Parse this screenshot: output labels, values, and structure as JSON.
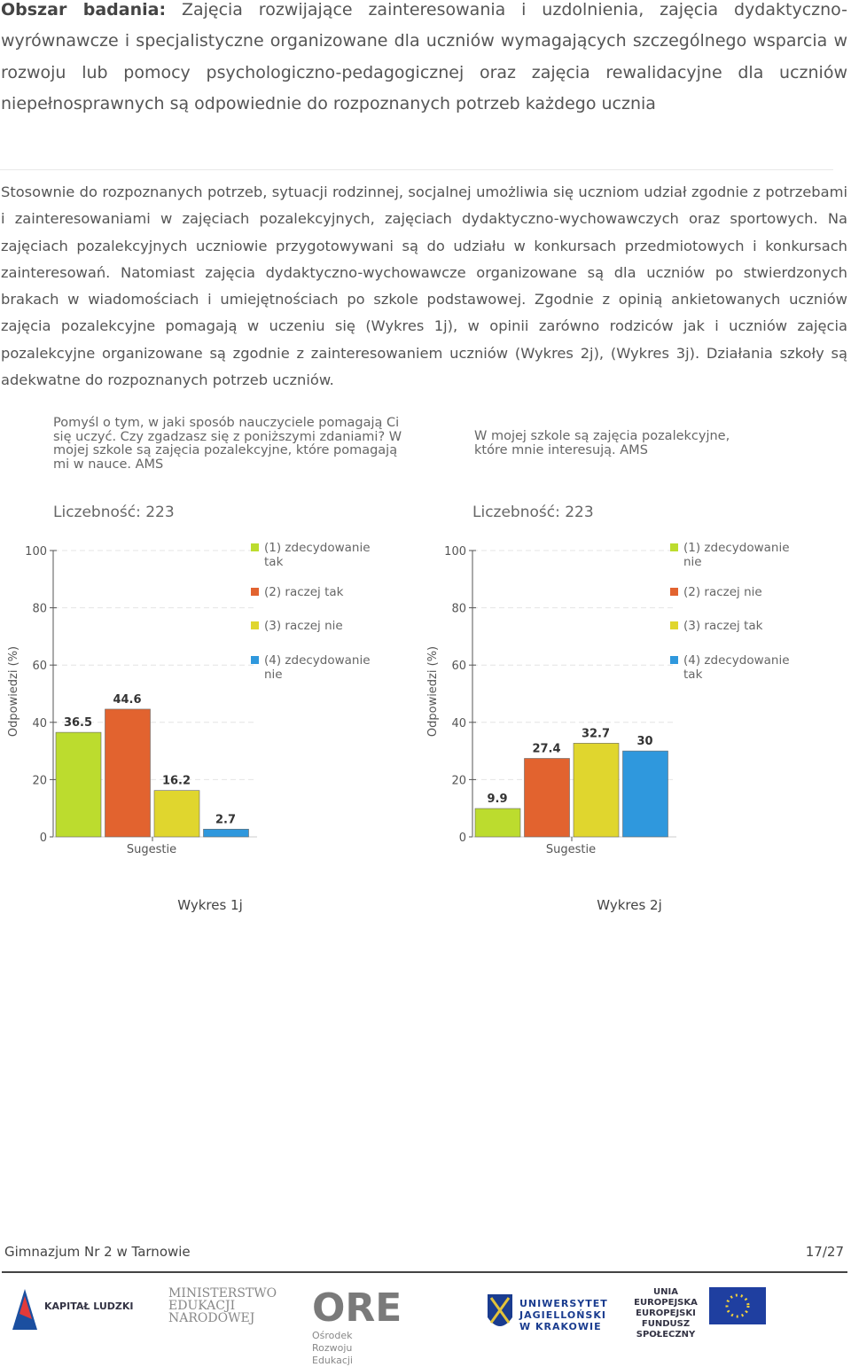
{
  "heading": {
    "label": "Obszar badania:",
    "text": "Zajęcia rozwijające zainteresowania i uzdolnienia, zajęcia dydaktyczno-wyrównawcze i specjalistyczne organizowane dla uczniów wymagających szczególnego wsparcia w rozwoju lub pomocy psychologiczno-pedagogicznej oraz zajęcia rewalidacyjne dla uczniów niepełnosprawnych są odpowiednie do rozpoznanych potrzeb każdego ucznia"
  },
  "paragraph": "Stosownie do rozpoznanych potrzeb, sytuacji rodzinnej, socjalnej umożliwia się uczniom udział zgodnie z potrzebami i zainteresowaniami w zajęciach pozalekcyjnych, zajęciach dydaktyczno-wychowawczych oraz sportowych. Na zajęciach pozalekcyjnych uczniowie przygotowywani są do udziału w konkursach przedmiotowych i konkursach zainteresowań. Natomiast zajęcia dydaktyczno-wychowawcze organizowane są dla uczniów po stwierdzonych brakach w wiadomościach i umiejętnościach po szkole podstawowej. Zgodnie z opinią ankietowanych uczniów zajęcia pozalekcyjne pomagają w uczeniu się (Wykres 1j), w opinii zarówno rodziców jak i uczniów zajęcia pozalekcyjne organizowane są zgodnie z zainteresowaniem uczniów (Wykres 2j), (Wykres 3j). Działania szkoły są adekwatne do rozpoznanych potrzeb uczniów.",
  "chart_data": [
    {
      "type": "bar",
      "title": "Pomyśl o tym, w jaki sposób nauczyciele pomagają Ci się uczyć. Czy zgadzasz się z poniższymi zdaniami? W mojej szkole są zajęcia pozalekcyjne, które pomagają mi w nauce. AMS",
      "subtitle": "Liczebność: 223",
      "x_label": "Sugestie",
      "y_label": "Odpowiedzi (%)",
      "ylim": [
        0,
        100
      ],
      "yticks": [
        0,
        20,
        40,
        60,
        80,
        100
      ],
      "grid": true,
      "series": [
        {
          "name": "(1) zdecydowanie tak",
          "color": "#bcdc2e",
          "values": [
            36.5
          ]
        },
        {
          "name": "(2) raczej tak",
          "color": "#e2632f",
          "values": [
            44.6
          ]
        },
        {
          "name": "(3) raczej nie",
          "color": "#e0d62e",
          "values": [
            16.2
          ]
        },
        {
          "name": "(4) zdecydowanie nie",
          "color": "#2f98dd",
          "values": [
            2.7
          ]
        }
      ],
      "caption": "Wykres 1j"
    },
    {
      "type": "bar",
      "title": "W mojej szkole są zajęcia pozalekcyjne, które mnie interesują. AMS",
      "subtitle": "Liczebność: 223",
      "x_label": "Sugestie",
      "y_label": "Odpowiedzi (%)",
      "ylim": [
        0,
        100
      ],
      "yticks": [
        0,
        20,
        40,
        60,
        80,
        100
      ],
      "grid": true,
      "series": [
        {
          "name": "(1) zdecydowanie nie",
          "color": "#bcdc2e",
          "values": [
            9.9
          ]
        },
        {
          "name": "(2) raczej nie",
          "color": "#e2632f",
          "values": [
            27.4
          ]
        },
        {
          "name": "(3) raczej tak",
          "color": "#e0d62e",
          "values": [
            32.7
          ]
        },
        {
          "name": "(4) zdecydowanie tak",
          "color": "#2f98dd",
          "values": [
            30
          ]
        }
      ],
      "caption": "Wykres 2j"
    }
  ],
  "footer": {
    "school": "Gimnazjum Nr 2 w Tarnowie",
    "page": "17/27"
  },
  "logos": [
    "KAPITAŁ LUDZKI",
    "MINISTERSTWO EDUKACJI NARODOWEJ",
    "ORE",
    "Ośrodek Rozwoju Edukacji",
    "UNIWERSYTET JAGIELLOŃSKI W KRAKOWIE",
    "UNIA EUROPEJSKA EUROPEJSKI FUNDUSZ SPOŁECZNY"
  ]
}
